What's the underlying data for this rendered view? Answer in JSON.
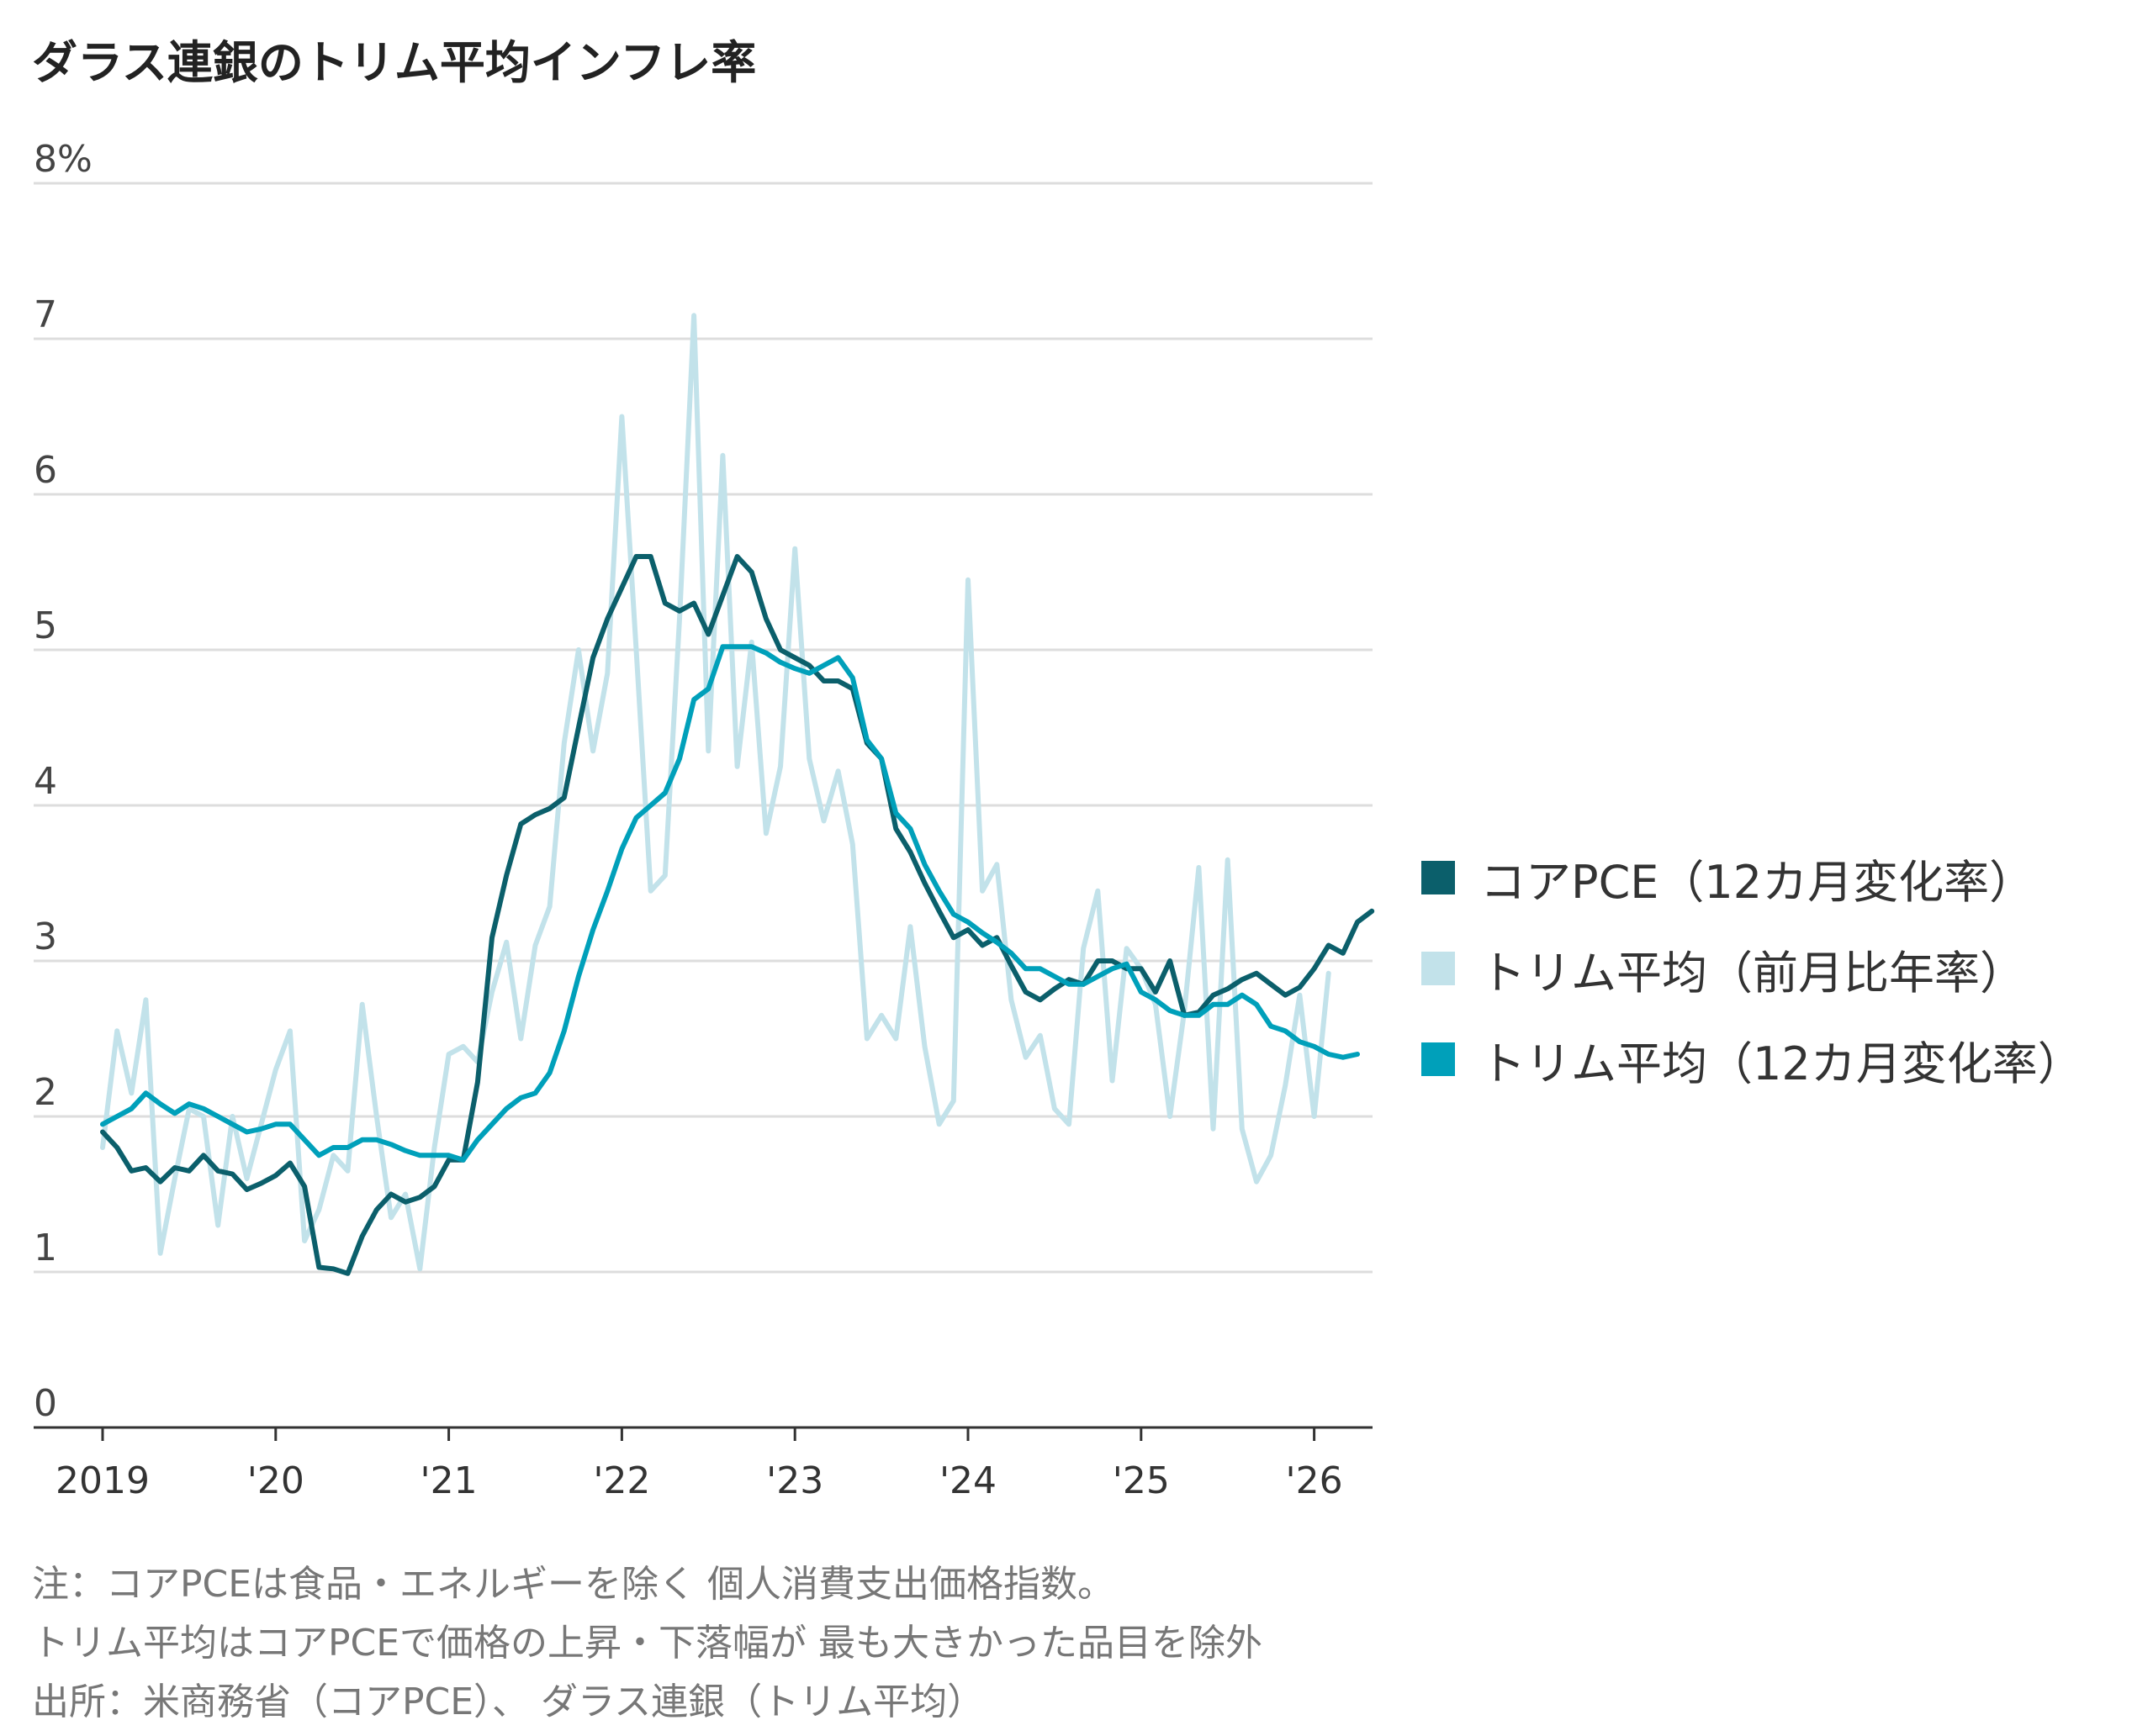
{
  "title": "ダラス連銀のトリム平均インフレ率",
  "notes": [
    "注：コアPCEは食品・エネルギーを除く 個人消費支出価格指数。",
    "トリム平均はコアPCEで価格の上昇・下落幅が 最も大きかった品目を除外",
    "出所：米商務省（コアPCE）、 ダラス連銀（トリム平均）"
  ],
  "chart_data": {
    "type": "line",
    "ylim": [
      0,
      8
    ],
    "yticks": [
      {
        "value": 8,
        "label": "8%"
      },
      {
        "value": 7,
        "label": "7"
      },
      {
        "value": 6,
        "label": "6"
      },
      {
        "value": 5,
        "label": "5"
      },
      {
        "value": 4,
        "label": "4"
      },
      {
        "value": 3,
        "label": "3"
      },
      {
        "value": 2,
        "label": "2"
      },
      {
        "value": 1,
        "label": "1"
      },
      {
        "value": 0,
        "label": "0"
      }
    ],
    "xticks": [
      {
        "value": "2019-01",
        "label": "2019"
      },
      {
        "value": "2020-01",
        "label": "'20"
      },
      {
        "value": "2021-01",
        "label": "'21"
      },
      {
        "value": "2022-01",
        "label": "'22"
      },
      {
        "value": "2023-01",
        "label": "'23"
      },
      {
        "value": "2024-01",
        "label": "'24"
      },
      {
        "value": "2025-01",
        "label": "'25"
      },
      {
        "value": "2026-01",
        "label": "'26"
      }
    ],
    "x_start": "2019-01",
    "grid": true,
    "legend_position": "right",
    "series": [
      {
        "name": "コアPCE（12カ月変化率）",
        "color": "#0b5f6b",
        "values": [
          1.9,
          1.8,
          1.65,
          1.67,
          1.58,
          1.67,
          1.65,
          1.75,
          1.65,
          1.63,
          1.53,
          1.57,
          1.62,
          1.7,
          1.55,
          1.03,
          1.02,
          0.99,
          1.23,
          1.4,
          1.5,
          1.45,
          1.48,
          1.55,
          1.72,
          1.72,
          2.22,
          3.15,
          3.55,
          3.88,
          3.94,
          3.98,
          4.05,
          4.5,
          4.95,
          5.2,
          5.4,
          5.6,
          5.6,
          5.3,
          5.25,
          5.3,
          5.1,
          5.35,
          5.6,
          5.5,
          5.2,
          5.0,
          4.95,
          4.9,
          4.8,
          4.8,
          4.75,
          4.4,
          4.3,
          3.85,
          3.7,
          3.5,
          3.32,
          3.15,
          3.2,
          3.1,
          3.15,
          2.97,
          2.8,
          2.75,
          2.82,
          2.88,
          2.85,
          3.0,
          3.0,
          2.95,
          2.95,
          2.8,
          3.0,
          2.65,
          2.67,
          2.78,
          2.82,
          2.88,
          2.92,
          2.85,
          2.78,
          2.83,
          2.95,
          3.1,
          3.05,
          3.25,
          3.32
        ]
      },
      {
        "name": "トリム平均（前月比年率）",
        "color": "#c2e2ea",
        "values": [
          1.8,
          2.55,
          2.15,
          2.75,
          1.12,
          1.6,
          2.05,
          2.0,
          1.3,
          2.0,
          1.6,
          1.95,
          2.3,
          2.55,
          1.2,
          1.4,
          1.75,
          1.65,
          2.72,
          2.0,
          1.35,
          1.5,
          1.02,
          1.8,
          2.4,
          2.45,
          2.35,
          2.8,
          3.12,
          2.5,
          3.1,
          3.35,
          4.4,
          5.0,
          4.35,
          4.85,
          6.5,
          5.0,
          3.45,
          3.55,
          5.2,
          7.15,
          4.35,
          6.25,
          4.25,
          5.05,
          3.82,
          4.25,
          5.65,
          4.3,
          3.9,
          4.22,
          3.75,
          2.5,
          2.65,
          2.5,
          3.22,
          2.45,
          1.95,
          2.1,
          5.45,
          3.45,
          3.62,
          2.75,
          2.38,
          2.52,
          2.05,
          1.95,
          3.08,
          3.45,
          2.23,
          3.08,
          2.95,
          2.72,
          2.0,
          2.68,
          3.6,
          1.92,
          3.65,
          1.92,
          1.58,
          1.75,
          2.2,
          2.78,
          2.0,
          2.92
        ]
      },
      {
        "name": "トリム平均（12カ月変化率）",
        "color": "#00a0ba",
        "values": [
          1.95,
          2.0,
          2.05,
          2.15,
          2.08,
          2.02,
          2.08,
          2.05,
          2.0,
          1.95,
          1.9,
          1.92,
          1.95,
          1.95,
          1.85,
          1.75,
          1.8,
          1.8,
          1.85,
          1.85,
          1.82,
          1.78,
          1.75,
          1.75,
          1.75,
          1.72,
          1.85,
          1.95,
          2.05,
          2.12,
          2.15,
          2.28,
          2.55,
          2.9,
          3.2,
          3.45,
          3.72,
          3.92,
          4.0,
          4.08,
          4.3,
          4.68,
          4.75,
          5.02,
          5.02,
          5.02,
          4.98,
          4.92,
          4.88,
          4.85,
          4.9,
          4.95,
          4.82,
          4.42,
          4.3,
          3.95,
          3.85,
          3.62,
          3.45,
          3.3,
          3.25,
          3.18,
          3.12,
          3.05,
          2.95,
          2.95,
          2.9,
          2.85,
          2.85,
          2.9,
          2.95,
          2.98,
          2.8,
          2.75,
          2.68,
          2.65,
          2.65,
          2.72,
          2.72,
          2.78,
          2.72,
          2.58,
          2.55,
          2.48,
          2.45,
          2.4,
          2.38,
          2.4
        ]
      }
    ]
  }
}
